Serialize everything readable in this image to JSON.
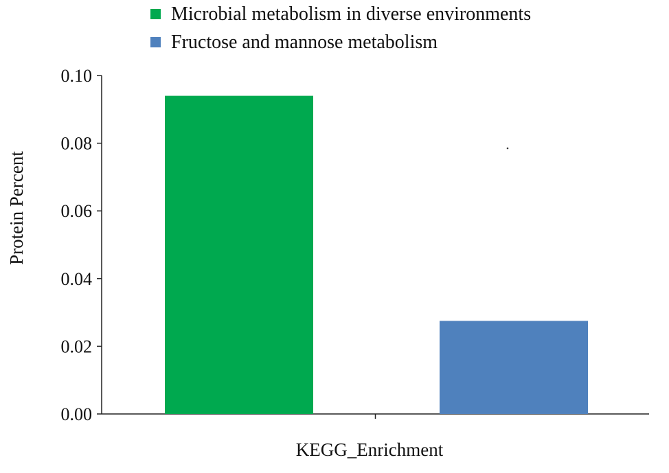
{
  "chart_data": {
    "type": "bar",
    "title": "",
    "xlabel": "KEGG_Enrichment",
    "ylabel": "Protein Percent",
    "ylim": [
      0,
      0.1
    ],
    "yticks": [
      "0.00",
      "0.02",
      "0.04",
      "0.06",
      "0.08",
      "0.10"
    ],
    "grid": false,
    "legend_position": "top",
    "series": [
      {
        "name": "Microbial metabolism in diverse environments",
        "value": 0.094,
        "color": "#00a94f"
      },
      {
        "name": "Fructose and mannose metabolism",
        "value": 0.0275,
        "color": "#4f81bd"
      }
    ]
  }
}
